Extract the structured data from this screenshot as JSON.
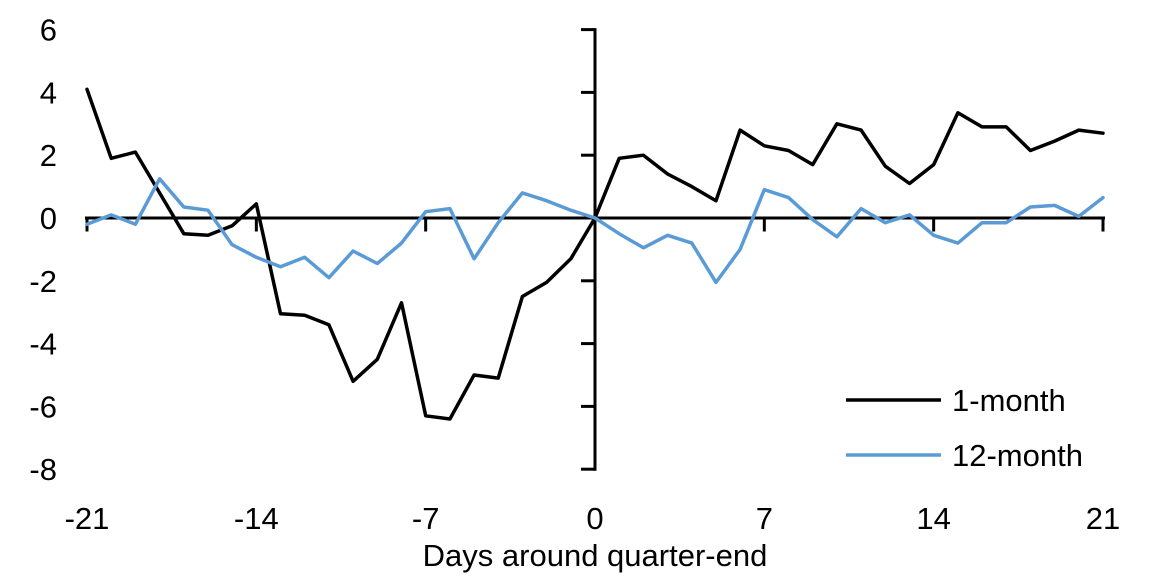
{
  "chart_data": {
    "type": "line",
    "title": "",
    "xlabel": "Days around quarter-end",
    "ylabel": "",
    "xlim": [
      -21,
      21
    ],
    "ylim": [
      -8,
      6
    ],
    "x_ticks": [
      -21,
      -14,
      -7,
      0,
      7,
      14,
      21
    ],
    "y_ticks": [
      6,
      4,
      2,
      0,
      -2,
      -4,
      -6,
      -8
    ],
    "grid": "off",
    "legend_position": "lower right",
    "axis_color": "#000000",
    "background_color": "#ffffff",
    "x": [
      -21,
      -20,
      -19,
      -18,
      -17,
      -16,
      -15,
      -14,
      -13,
      -12,
      -11,
      -10,
      -9,
      -8,
      -7,
      -6,
      -5,
      -4,
      -3,
      -2,
      -1,
      0,
      1,
      2,
      3,
      4,
      5,
      6,
      7,
      8,
      9,
      10,
      11,
      12,
      13,
      14,
      15,
      16,
      17,
      18,
      19,
      20,
      21
    ],
    "series": [
      {
        "name": "1-month",
        "color": "#000000",
        "values": [
          4.1,
          1.9,
          2.1,
          0.8,
          -0.5,
          -0.55,
          -0.25,
          0.45,
          -3.05,
          -3.1,
          -3.4,
          -5.2,
          -4.5,
          -2.7,
          -6.3,
          -6.4,
          -5.0,
          -5.1,
          -2.5,
          -2.05,
          -1.3,
          0.0,
          1.9,
          2.0,
          1.4,
          1.0,
          0.55,
          2.8,
          2.3,
          2.15,
          1.7,
          3.0,
          2.8,
          1.65,
          1.1,
          1.7,
          3.35,
          2.9,
          2.9,
          2.15,
          2.45,
          2.8,
          2.7
        ]
      },
      {
        "name": "12-month",
        "color": "#5B9BD5",
        "values": [
          -0.2,
          0.1,
          -0.2,
          1.25,
          0.35,
          0.25,
          -0.85,
          -1.25,
          -1.55,
          -1.25,
          -1.9,
          -1.05,
          -1.45,
          -0.8,
          0.2,
          0.3,
          -1.3,
          -0.15,
          0.8,
          0.55,
          0.25,
          0.0,
          -0.5,
          -0.95,
          -0.55,
          -0.8,
          -2.05,
          -1.0,
          0.9,
          0.65,
          -0.05,
          -0.6,
          0.3,
          -0.15,
          0.1,
          -0.55,
          -0.8,
          -0.15,
          -0.15,
          0.35,
          0.4,
          0.05,
          0.65
        ]
      }
    ]
  }
}
